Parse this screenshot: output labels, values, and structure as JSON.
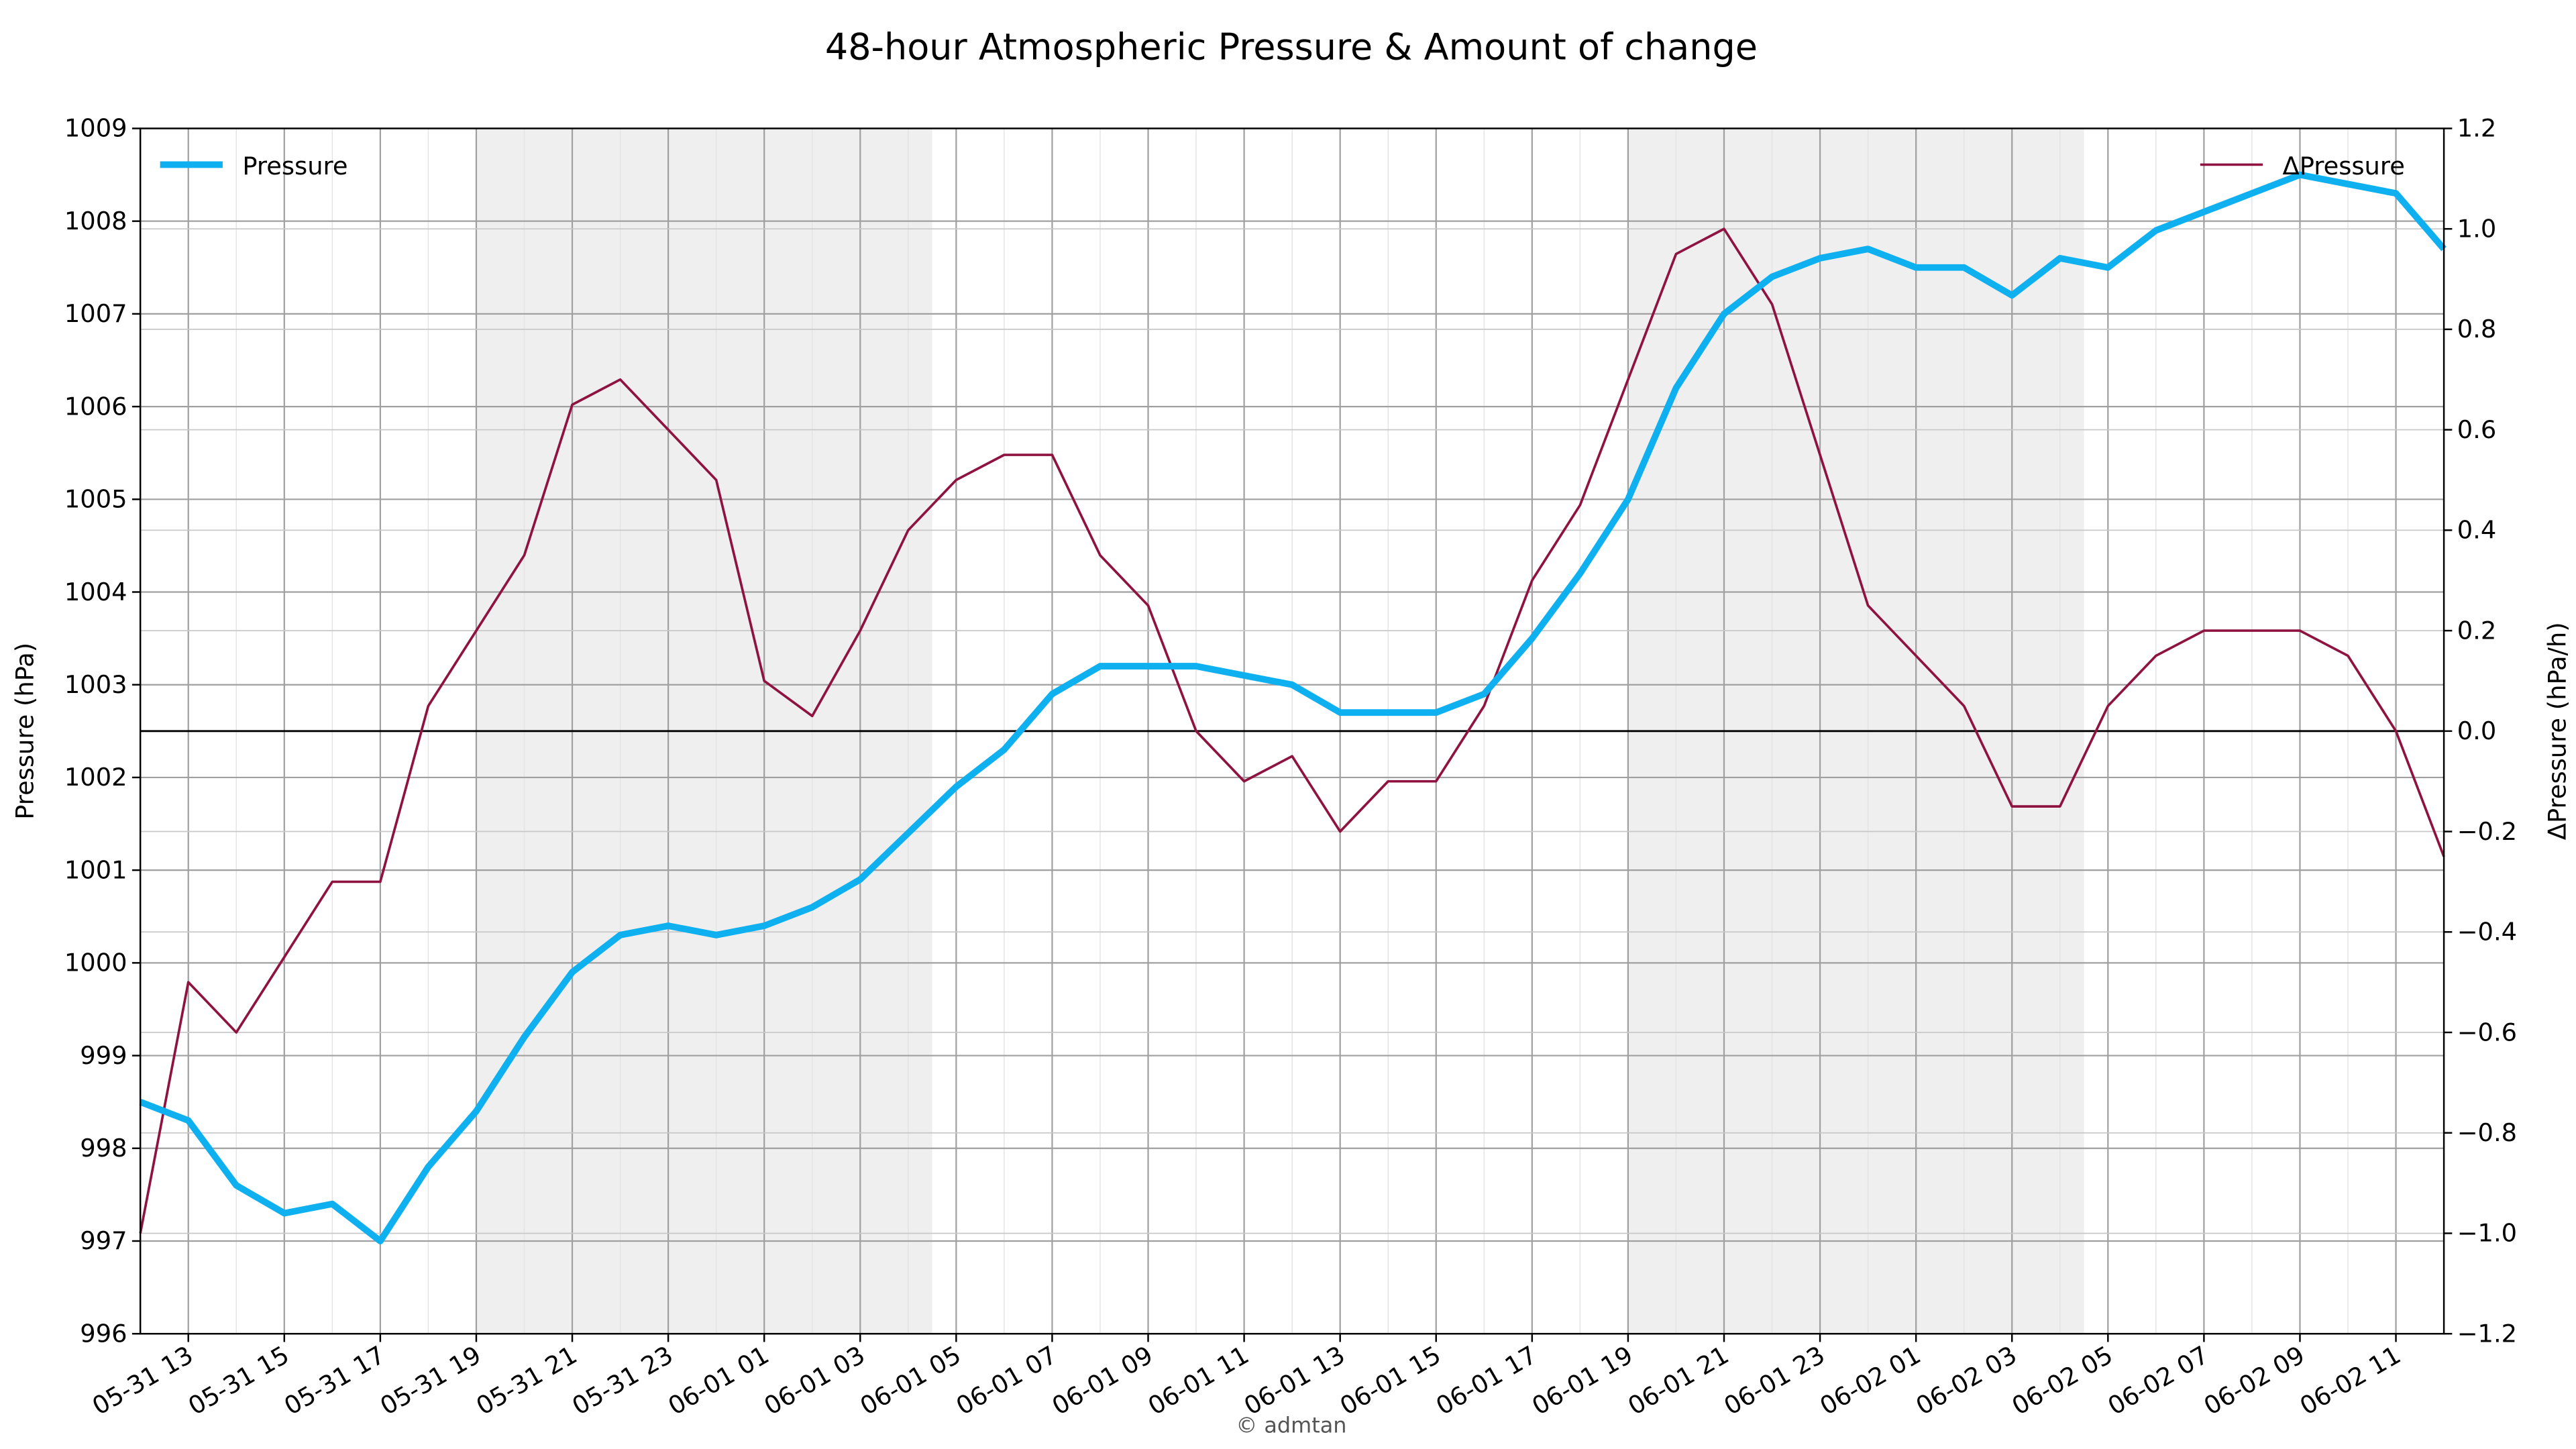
{
  "chart_data": {
    "type": "line",
    "title": "48-hour Atmospheric Pressure & Amount of change",
    "ylabel": "Pressure (hPa)",
    "y2label": "ΔPressure (hPa/h)",
    "watermark": "© admtan",
    "x": [
      0,
      1,
      2,
      3,
      4,
      5,
      6,
      7,
      8,
      9,
      10,
      11,
      12,
      13,
      14,
      15,
      16,
      17,
      18,
      19,
      20,
      21,
      22,
      23,
      24,
      25,
      26,
      27,
      28,
      29,
      30,
      31,
      32,
      33,
      34,
      35,
      36,
      37,
      38,
      39,
      40,
      41,
      42,
      43,
      44,
      45,
      46,
      47,
      48
    ],
    "xlim": [
      0,
      48
    ],
    "xticks": [
      {
        "value": 1,
        "label": "05-31 13"
      },
      {
        "value": 3,
        "label": "05-31 15"
      },
      {
        "value": 5,
        "label": "05-31 17"
      },
      {
        "value": 7,
        "label": "05-31 19"
      },
      {
        "value": 9,
        "label": "05-31 21"
      },
      {
        "value": 11,
        "label": "05-31 23"
      },
      {
        "value": 13,
        "label": "06-01 01"
      },
      {
        "value": 15,
        "label": "06-01 03"
      },
      {
        "value": 17,
        "label": "06-01 05"
      },
      {
        "value": 19,
        "label": "06-01 07"
      },
      {
        "value": 21,
        "label": "06-01 09"
      },
      {
        "value": 23,
        "label": "06-01 11"
      },
      {
        "value": 25,
        "label": "06-01 13"
      },
      {
        "value": 27,
        "label": "06-01 15"
      },
      {
        "value": 29,
        "label": "06-01 17"
      },
      {
        "value": 31,
        "label": "06-01 19"
      },
      {
        "value": 33,
        "label": "06-01 21"
      },
      {
        "value": 35,
        "label": "06-01 23"
      },
      {
        "value": 37,
        "label": "06-02 01"
      },
      {
        "value": 39,
        "label": "06-02 03"
      },
      {
        "value": 41,
        "label": "06-02 05"
      },
      {
        "value": 43,
        "label": "06-02 07"
      },
      {
        "value": 45,
        "label": "06-02 09"
      },
      {
        "value": 47,
        "label": "06-02 11"
      }
    ],
    "ylim": [
      996,
      1009
    ],
    "yticks": [
      996,
      997,
      998,
      999,
      1000,
      1001,
      1002,
      1003,
      1004,
      1005,
      1006,
      1007,
      1008,
      1009
    ],
    "y2lim": [
      -1.2,
      1.2
    ],
    "y2ticks": [
      {
        "value": -1.2,
        "label": "−1.2"
      },
      {
        "value": -1.0,
        "label": "−1.0"
      },
      {
        "value": -0.8,
        "label": "−0.8"
      },
      {
        "value": -0.6,
        "label": "−0.6"
      },
      {
        "value": -0.4,
        "label": "−0.4"
      },
      {
        "value": -0.2,
        "label": "−0.2"
      },
      {
        "value": 0,
        "label": "0.0"
      },
      {
        "value": 0.2,
        "label": "0.2"
      },
      {
        "value": 0.4,
        "label": "0.4"
      },
      {
        "value": 0.6,
        "label": "0.6"
      },
      {
        "value": 0.8,
        "label": "0.8"
      },
      {
        "value": 1.0,
        "label": "1.0"
      },
      {
        "value": 1.2,
        "label": "1.2"
      }
    ],
    "y2_reference_line": 0,
    "shaded_spans": [
      [
        7,
        16.5
      ],
      [
        31,
        40.5
      ]
    ],
    "grid": true,
    "series": [
      {
        "name": "Pressure",
        "color": "#0fb0f0",
        "axis": "y",
        "legend": "upper left",
        "values": [
          998.5,
          998.3,
          997.6,
          997.3,
          997.4,
          997.0,
          997.8,
          998.4,
          999.2,
          999.9,
          1000.3,
          1000.4,
          1000.3,
          1000.4,
          1000.6,
          1000.9,
          1001.4,
          1001.9,
          1002.3,
          1002.9,
          1003.2,
          1003.2,
          1003.2,
          1003.1,
          1003.0,
          1002.7,
          1002.7,
          1002.7,
          1002.9,
          1003.5,
          1004.2,
          1005.0,
          1006.2,
          1007.0,
          1007.4,
          1007.6,
          1007.7,
          1007.5,
          1007.5,
          1007.2,
          1007.6,
          1007.5,
          1007.9,
          1008.1,
          1008.3,
          1008.5,
          1008.4,
          1008.3,
          1007.7
        ]
      },
      {
        "name": "ΔPressure",
        "color": "#8f1340",
        "axis": "y2",
        "legend": "upper right",
        "values": [
          -1.0,
          -0.5,
          -0.6,
          -0.45,
          -0.3,
          -0.3,
          0.05,
          0.2,
          0.35,
          0.65,
          0.7,
          0.6,
          0.5,
          0.1,
          0.03,
          0.2,
          0.4,
          0.5,
          0.55,
          0.55,
          0.35,
          0.25,
          0.0,
          -0.1,
          -0.05,
          -0.2,
          -0.1,
          -0.1,
          0.05,
          0.3,
          0.45,
          0.7,
          0.95,
          1.0,
          0.85,
          0.55,
          0.25,
          0.15,
          0.05,
          -0.15,
          -0.15,
          0.05,
          0.15,
          0.2,
          0.2,
          0.2,
          0.15,
          0.0,
          -0.25
        ]
      }
    ]
  }
}
